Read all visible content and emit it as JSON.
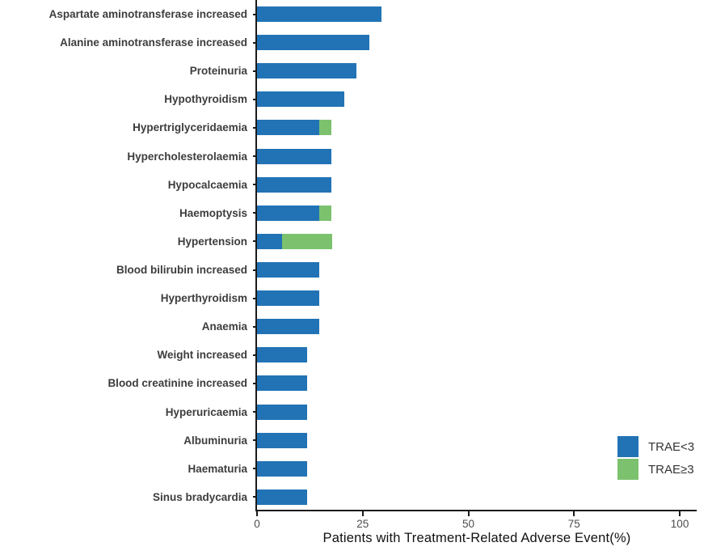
{
  "chart_data": {
    "type": "bar",
    "orientation": "horizontal",
    "stacked": true,
    "title": "",
    "xlabel": "Patients with Treatment-Related Adverse Event(%)",
    "ylabel": "",
    "x_ticks": [
      0,
      25,
      50,
      75,
      100
    ],
    "xlim": [
      0,
      104
    ],
    "grid": false,
    "categories": [
      "Aspartate aminotransferase increased",
      "Alanine aminotransferase increased",
      "Proteinuria",
      "Hypothyroidism",
      "Hypertriglyceridaemia",
      "Hypercholesterolaemia",
      "Hypocalcaemia",
      "Haemoptysis",
      "Hypertension",
      "Blood bilirubin increased",
      "Hyperthyroidism",
      "Anaemia",
      "Weight increased",
      "Blood creatinine increased",
      "Hyperuricaemia",
      "Albuminuria",
      "Haematuria",
      "Sinus bradycardia"
    ],
    "series": [
      {
        "name": "TRAE<3",
        "color": "#2273B5",
        "values": [
          29.4,
          26.5,
          23.5,
          20.6,
          14.7,
          17.6,
          17.6,
          14.7,
          5.9,
          14.7,
          14.7,
          14.7,
          11.8,
          11.8,
          11.8,
          11.8,
          11.8,
          11.8
        ]
      },
      {
        "name": "TRAE≥3",
        "color": "#7CC26E",
        "values": [
          0,
          0,
          0,
          0,
          2.9,
          0,
          0,
          2.9,
          11.8,
          0,
          0,
          0,
          0,
          0,
          0,
          0,
          0,
          0
        ]
      }
    ],
    "legend": {
      "position": "right-bottom",
      "entries": [
        "TRAE<3",
        "TRAE≥3"
      ]
    }
  }
}
